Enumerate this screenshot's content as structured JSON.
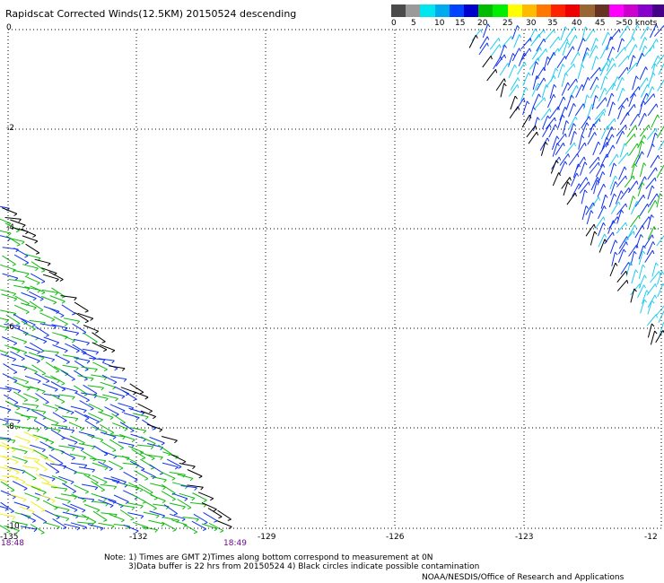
{
  "title": "Rapidscat Corrected Winds(12.5KM) 20150524 descending",
  "legend": {
    "colors": [
      "#4a4a4a",
      "#9a9a9a",
      "#00e5ee",
      "#00aaee",
      "#0044ff",
      "#0000cc",
      "#00bb00",
      "#00ee00",
      "#ffff00",
      "#ffbb00",
      "#ff7700",
      "#ff2200",
      "#ee0000",
      "#996633",
      "#663322",
      "#ff00ff",
      "#cc00cc",
      "#8800cc",
      "#440088",
      "#220044"
    ],
    "labels": [
      "0",
      "5",
      "10",
      "15",
      "20",
      "25",
      "30",
      "35",
      "40",
      "45",
      ">50 knots"
    ]
  },
  "axes": {
    "y_labels": [
      "0",
      "-2",
      "-4",
      "-6",
      "-8",
      "-10"
    ],
    "x_labels": [
      "-135",
      "-132",
      "-129",
      "-126",
      "-123",
      "-12"
    ]
  },
  "times": {
    "start": "18:48",
    "end": "18:49"
  },
  "notes": [
    "Note: 1) Times are GMT 2)Times along bottom correspond to measurement at 0N",
    "3)Data buffer is 22 hrs from 20150524 4) Black circles indicate possible contamination"
  ],
  "credit": "NOAA/NESDIS/Office of Research and Applications",
  "map_colors": {
    "light_blue": "#22ccee",
    "blue": "#1133ee",
    "green": "#11bb11",
    "yellow": "#eeee22",
    "black": "#000000"
  }
}
